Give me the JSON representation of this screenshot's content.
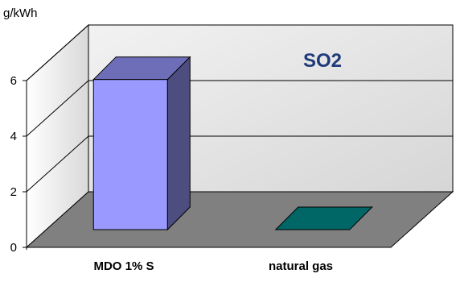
{
  "chart_data": {
    "type": "bar",
    "title": "SO2",
    "ylabel": "g/kWh",
    "xlabel": "",
    "categories": [
      "MDO 1% S",
      "natural gas"
    ],
    "values": [
      5.4,
      0.02
    ],
    "ylim": [
      0,
      6
    ],
    "yticks": [
      "0",
      "2",
      "4",
      "6"
    ],
    "grid": true,
    "legend": "none",
    "colors": {
      "bar_series": [
        "#9999ff",
        "#006666"
      ],
      "floor": "#808080",
      "back_wall": "#d9d9d9",
      "side_wall": "#e6e6e6",
      "title": "#1f3a7a"
    }
  }
}
